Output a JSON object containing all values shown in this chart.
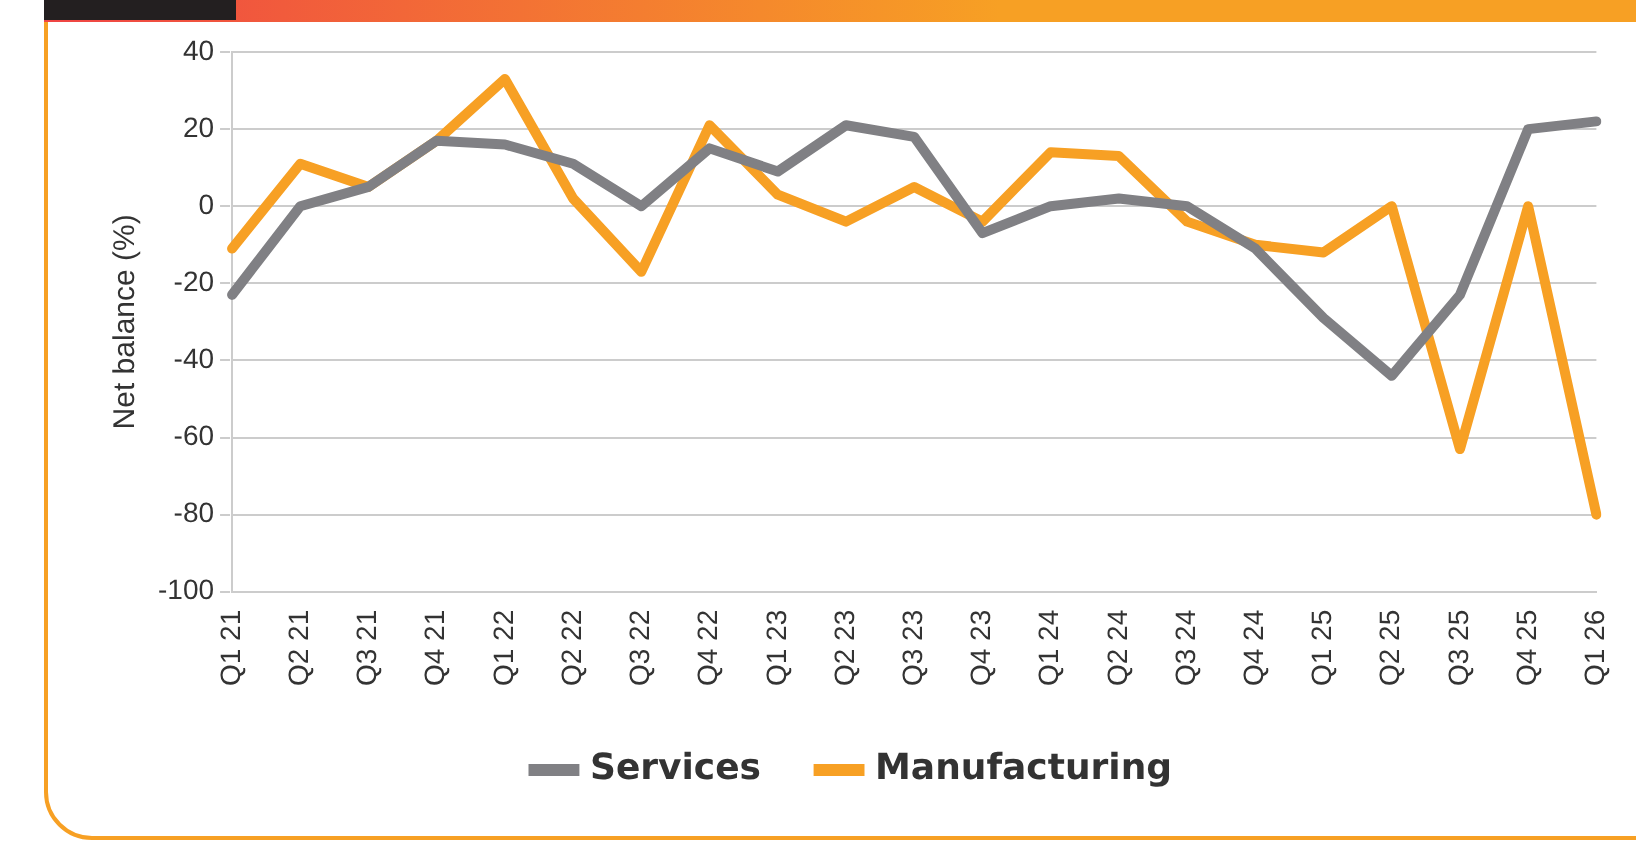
{
  "chart_data": {
    "type": "line",
    "ylabel": "Net balance (%)",
    "categories": [
      "Q1 21",
      "Q2 21",
      "Q3 21",
      "Q4 21",
      "Q1 22",
      "Q2 22",
      "Q3 22",
      "Q4 22",
      "Q1 23",
      "Q2 23",
      "Q3 23",
      "Q4 23",
      "Q1 24",
      "Q2 24",
      "Q3 24",
      "Q4 24",
      "Q1 25",
      "Q2 25",
      "Q3 25",
      "Q4 25",
      "Q1 26"
    ],
    "series": [
      {
        "name": "Services",
        "color": "#808084",
        "values": [
          -23,
          0,
          5,
          17,
          16,
          11,
          0,
          15,
          9,
          21,
          18,
          -7,
          0,
          2,
          0,
          -11,
          -29,
          -44,
          -23,
          20,
          22
        ]
      },
      {
        "name": "Manufacturing",
        "color": "#f7a024",
        "values": [
          -11,
          11,
          5,
          17,
          33,
          2,
          -17,
          21,
          3,
          -4,
          5,
          -4,
          14,
          13,
          -4,
          -10,
          -12,
          0,
          -63,
          0,
          -80
        ]
      }
    ],
    "ylim": [
      -100,
      40
    ],
    "yticks": [
      -100,
      -80,
      -60,
      -40,
      -20,
      0,
      20,
      40
    ],
    "grid": "y",
    "legend": "bottom",
    "marker": "none",
    "line_style": "solid"
  }
}
